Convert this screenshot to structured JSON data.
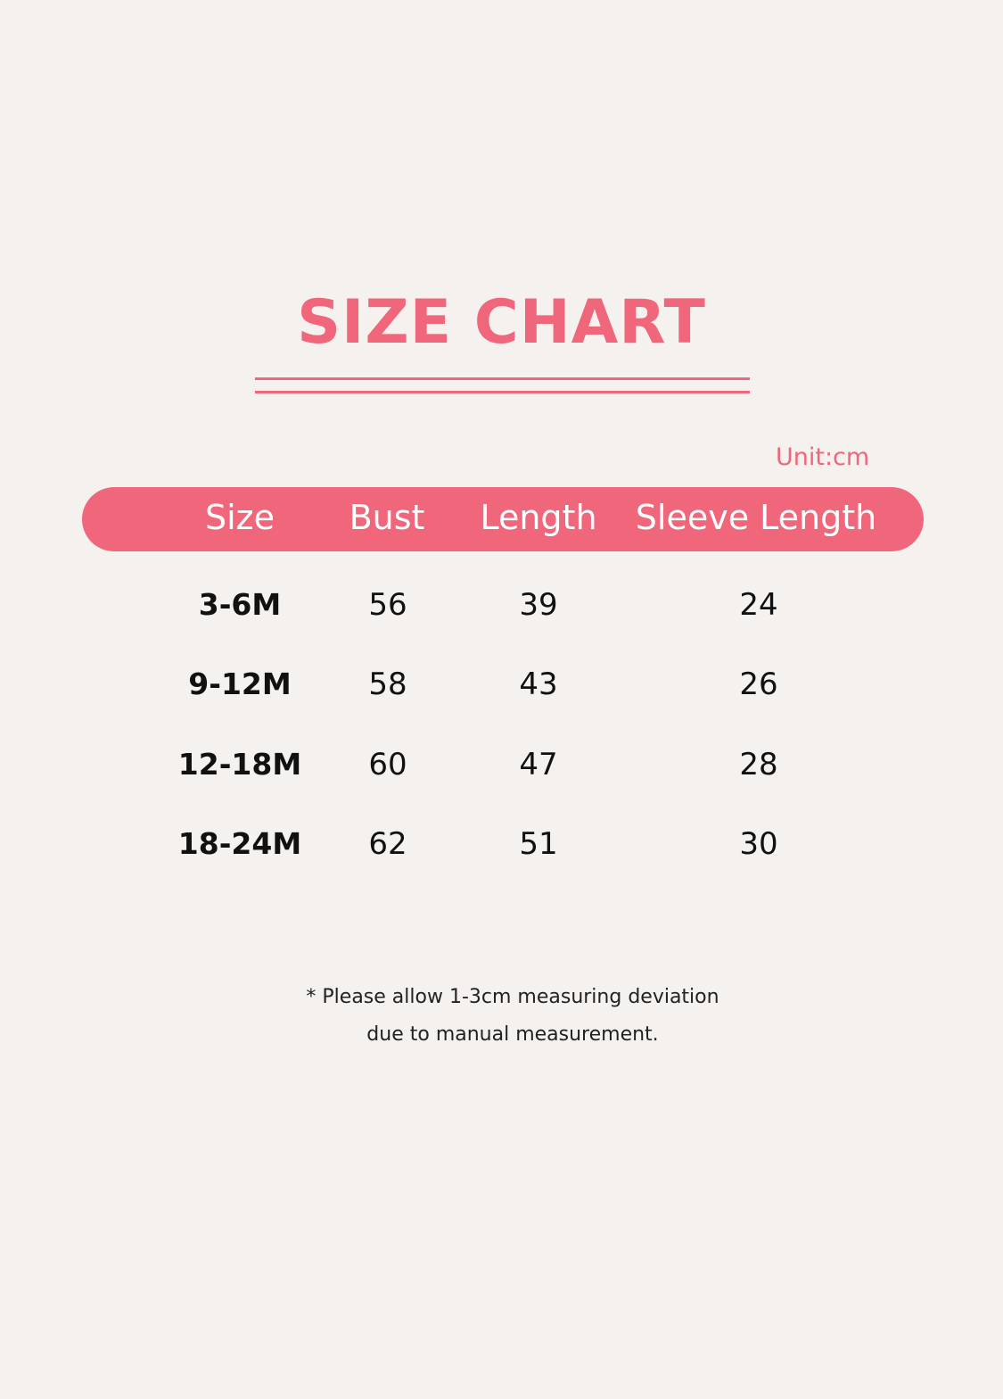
{
  "title": "SIZE CHART",
  "unit": "Unit:cm",
  "accent_color": "#f0667a",
  "columns": [
    "Size",
    "Bust",
    "Length",
    "Sleeve Length"
  ],
  "rows": [
    [
      "3-6M",
      "56",
      "39",
      "24"
    ],
    [
      "9-12M",
      "58",
      "43",
      "26"
    ],
    [
      "12-18M",
      "60",
      "47",
      "28"
    ],
    [
      "18-24M",
      "62",
      "51",
      "30"
    ]
  ],
  "note": {
    "line1": "* Please allow 1-3cm measuring deviation",
    "line2": "due to manual measurement."
  }
}
